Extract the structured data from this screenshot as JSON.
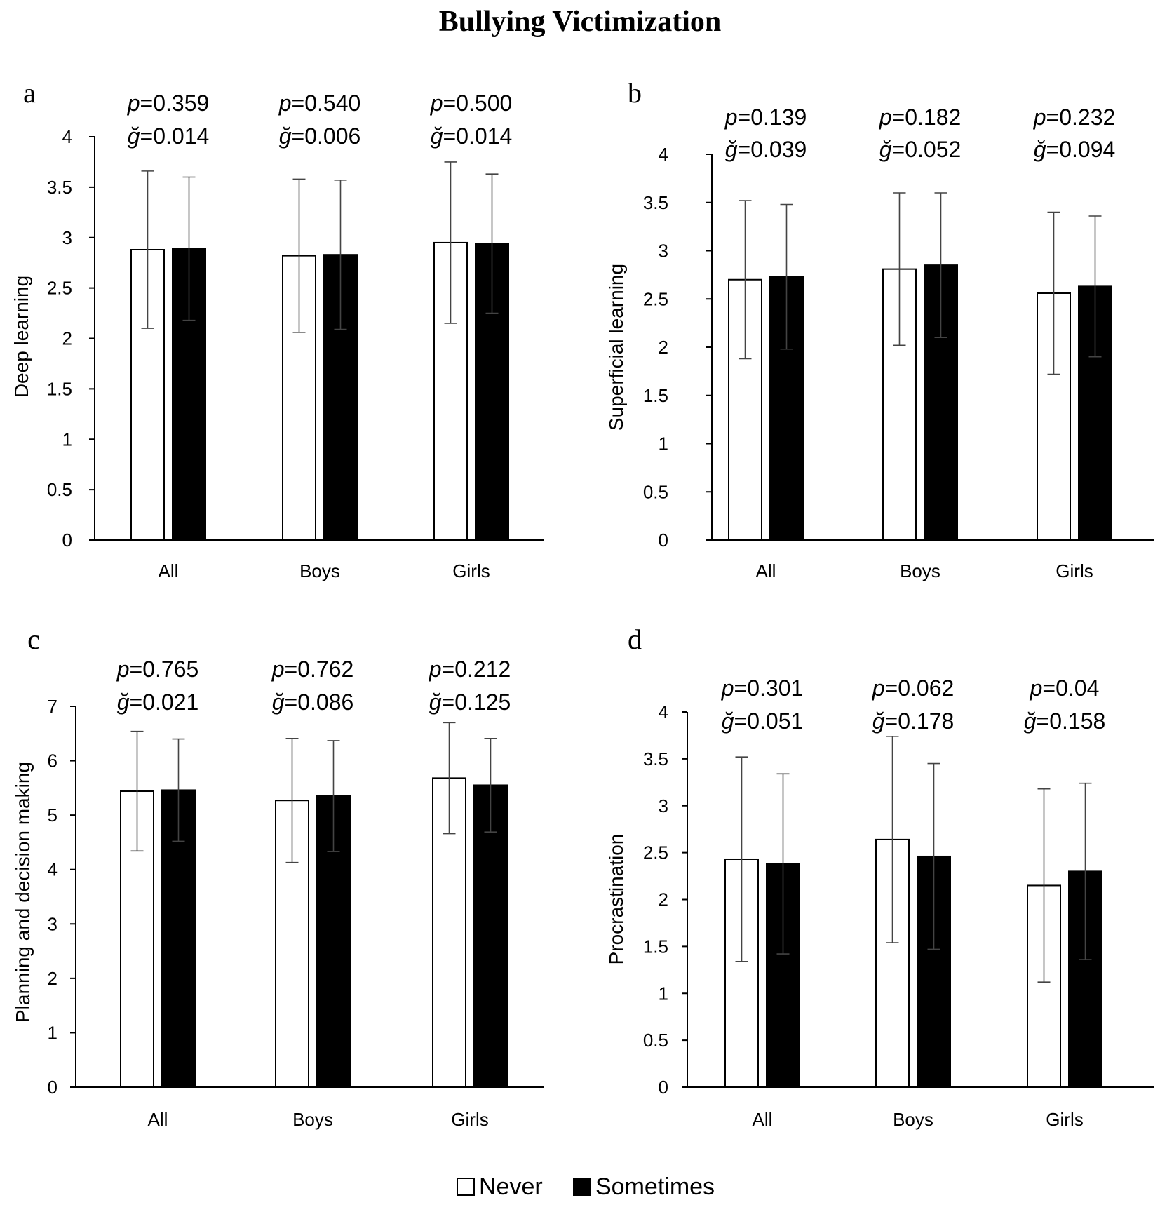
{
  "title": "Bullying Victimization",
  "legend": [
    {
      "label": "Never",
      "fill": "#ffffff"
    },
    {
      "label": "Sometimes",
      "fill": "#000000"
    }
  ],
  "chart_data": [
    {
      "type": "bar",
      "panel": "a",
      "ylabel": "Deep learning",
      "ylim": [
        0,
        4
      ],
      "yticks": [
        "0",
        "0.5",
        "1",
        "1.5",
        "2",
        "2.5",
        "3",
        "3.5",
        "4"
      ],
      "categories": [
        "All",
        "Boys",
        "Girls"
      ],
      "series": [
        {
          "name": "Never",
          "values": [
            2.88,
            2.82,
            2.95
          ],
          "errors": [
            0.78,
            0.76,
            0.8
          ]
        },
        {
          "name": "Sometimes",
          "values": [
            2.89,
            2.83,
            2.94
          ],
          "errors": [
            0.71,
            0.74,
            0.69
          ]
        }
      ],
      "p_labels": [
        "p=0.359",
        "p=0.540",
        "p=0.500"
      ],
      "g_labels": [
        "ğ=0.014",
        "ğ=0.006",
        "ğ=0.014"
      ]
    },
    {
      "type": "bar",
      "panel": "b",
      "ylabel": "Superficial learning",
      "ylim": [
        0,
        4
      ],
      "yticks": [
        "0",
        "0.5",
        "1",
        "1.5",
        "2",
        "2.5",
        "3",
        "3.5",
        "4"
      ],
      "categories": [
        "All",
        "Boys",
        "Girls"
      ],
      "series": [
        {
          "name": "Never",
          "values": [
            2.7,
            2.81,
            2.56
          ],
          "errors": [
            0.82,
            0.79,
            0.84
          ]
        },
        {
          "name": "Sometimes",
          "values": [
            2.73,
            2.85,
            2.63
          ],
          "errors": [
            0.75,
            0.75,
            0.73
          ]
        }
      ],
      "p_labels": [
        "p=0.139",
        "p=0.182",
        "p=0.232"
      ],
      "g_labels": [
        "ğ=0.039",
        "ğ=0.052",
        "ğ=0.094"
      ]
    },
    {
      "type": "bar",
      "panel": "c",
      "ylabel": "Planning and decision making",
      "ylim": [
        0,
        7
      ],
      "yticks": [
        "0",
        "1",
        "2",
        "3",
        "4",
        "5",
        "6",
        "7"
      ],
      "categories": [
        "All",
        "Boys",
        "Girls"
      ],
      "series": [
        {
          "name": "Never",
          "values": [
            5.44,
            5.27,
            5.68
          ],
          "errors": [
            1.1,
            1.14,
            1.02
          ]
        },
        {
          "name": "Sometimes",
          "values": [
            5.46,
            5.35,
            5.55
          ],
          "errors": [
            0.94,
            1.02,
            0.86
          ]
        }
      ],
      "p_labels": [
        "p=0.765",
        "p=0.762",
        "p=0.212"
      ],
      "g_labels": [
        "ğ=0.021",
        "ğ=0.086",
        "ğ=0.125"
      ]
    },
    {
      "type": "bar",
      "panel": "d",
      "ylabel": "Procrastination",
      "ylim": [
        0,
        4
      ],
      "yticks": [
        "0",
        "0.5",
        "1",
        "1.5",
        "2",
        "2.5",
        "3",
        "3.5",
        "4"
      ],
      "categories": [
        "All",
        "Boys",
        "Girls"
      ],
      "series": [
        {
          "name": "Never",
          "values": [
            2.43,
            2.64,
            2.15
          ],
          "errors": [
            1.09,
            1.1,
            1.03
          ]
        },
        {
          "name": "Sometimes",
          "values": [
            2.38,
            2.46,
            2.3
          ],
          "errors": [
            0.96,
            0.99,
            0.94
          ]
        }
      ],
      "p_labels": [
        "p=0.301",
        "p=0.062",
        "p=0.04"
      ],
      "g_labels": [
        "ğ=0.051",
        "ğ=0.178",
        "ğ=0.158"
      ]
    }
  ]
}
